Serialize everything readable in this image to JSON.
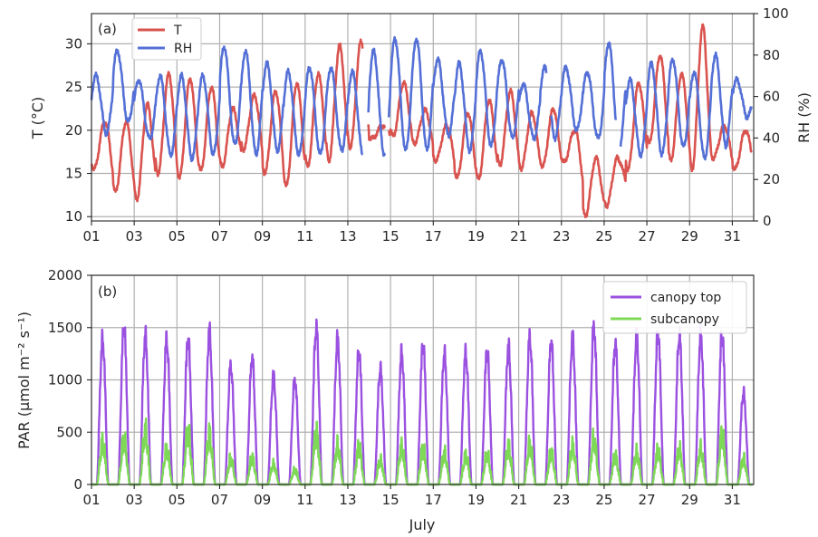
{
  "chart_data": [
    {
      "panel": "(a)",
      "type": "line",
      "xlabel": "",
      "ylabel": "T (°C)",
      "y2label": "RH (%)",
      "ylim": [
        9.5,
        33.5
      ],
      "y2lim": [
        0,
        100
      ],
      "xlim_day": [
        1,
        32
      ],
      "xticks": [
        "01",
        "03",
        "05",
        "07",
        "09",
        "11",
        "13",
        "15",
        "17",
        "19",
        "21",
        "23",
        "25",
        "27",
        "29",
        "31"
      ],
      "yticks": [
        10,
        15,
        20,
        25,
        30
      ],
      "y2ticks": [
        0,
        20,
        40,
        60,
        80,
        100
      ],
      "grid": true,
      "legend_position": "top-left",
      "series": [
        {
          "name": "T",
          "axis": "left",
          "color": "#d9534f",
          "daily_min": [
            15.5,
            12.9,
            12.0,
            15.0,
            14.5,
            15.3,
            15.8,
            17.8,
            15.0,
            13.5,
            15.8,
            16.5,
            18.0,
            19.0,
            19.3,
            18.5,
            16.5,
            14.5,
            14.3,
            16.0,
            15.6,
            15.8,
            16.3,
            10.1,
            11.3,
            15.5,
            18.5,
            16.5,
            15.5,
            16.8,
            15.5
          ],
          "daily_max": [
            21.0,
            21.0,
            23.0,
            26.5,
            26.0,
            25.0,
            22.5,
            24.0,
            24.5,
            25.5,
            26.5,
            29.8,
            30.3,
            20.5,
            25.5,
            22.3,
            20.5,
            22.0,
            23.5,
            24.5,
            22.0,
            22.5,
            20.0,
            16.8,
            16.8,
            25.5,
            28.7,
            26.5,
            32.0,
            20.5,
            20.0
          ],
          "gaps_day": [
            [
              13.7,
              13.95
            ],
            [
              14.75,
              14.9
            ]
          ]
        },
        {
          "name": "RH",
          "axis": "right",
          "color": "#5470d6",
          "daily_min": [
            42.0,
            48.0,
            40.0,
            32.0,
            30.0,
            32.0,
            37.0,
            32.0,
            34.0,
            32.0,
            32.0,
            34.0,
            32.0,
            32.0,
            34.0,
            34.0,
            42.0,
            34.0,
            36.0,
            40.0,
            40.0,
            40.0,
            44.0,
            40.0,
            36.0,
            32.0,
            32.0,
            36.0,
            30.0,
            36.0,
            50.0
          ],
          "daily_max": [
            70.0,
            82.0,
            68.0,
            70.0,
            70.0,
            70.0,
            84.0,
            82.0,
            76.0,
            72.0,
            74.0,
            74.0,
            72.0,
            82.0,
            88.0,
            88.0,
            78.0,
            76.0,
            82.0,
            78.0,
            66.0,
            74.0,
            74.0,
            72.0,
            86.0,
            68.0,
            76.0,
            78.0,
            72.0,
            80.0,
            68.0
          ],
          "gaps_day": [
            [
              13.7,
              13.95
            ],
            [
              14.75,
              14.9
            ],
            [
              22.3,
              22.5
            ],
            [
              25.55,
              25.75
            ]
          ]
        }
      ]
    },
    {
      "panel": "(b)",
      "type": "line",
      "xlabel": "July",
      "ylabel": "PAR (μmol m⁻² s⁻¹)",
      "ylim": [
        0,
        2000
      ],
      "xlim_day": [
        1,
        32
      ],
      "xticks": [
        "01",
        "03",
        "05",
        "07",
        "09",
        "11",
        "13",
        "15",
        "17",
        "19",
        "21",
        "23",
        "25",
        "27",
        "29",
        "31"
      ],
      "yticks": [
        0,
        500,
        1000,
        1500,
        2000
      ],
      "grid": true,
      "legend_position": "top-right",
      "series": [
        {
          "name": "canopy top",
          "color": "#9b51e0",
          "daily_peak": [
            1500,
            1630,
            1540,
            1500,
            1510,
            1580,
            1230,
            1310,
            1120,
            1080,
            1630,
            1500,
            1380,
            1200,
            1360,
            1450,
            1350,
            1360,
            1390,
            1420,
            1520,
            1480,
            1520,
            1630,
            1460,
            1530,
            1570,
            1550,
            1550,
            1560,
            950
          ]
        },
        {
          "name": "subcanopy",
          "color": "#7ed957",
          "daily_peak": [
            520,
            560,
            670,
            440,
            660,
            620,
            320,
            330,
            250,
            180,
            640,
            480,
            460,
            300,
            470,
            440,
            390,
            360,
            380,
            470,
            500,
            400,
            480,
            560,
            350,
            400,
            420,
            430,
            440,
            620,
            320
          ]
        }
      ]
    }
  ]
}
